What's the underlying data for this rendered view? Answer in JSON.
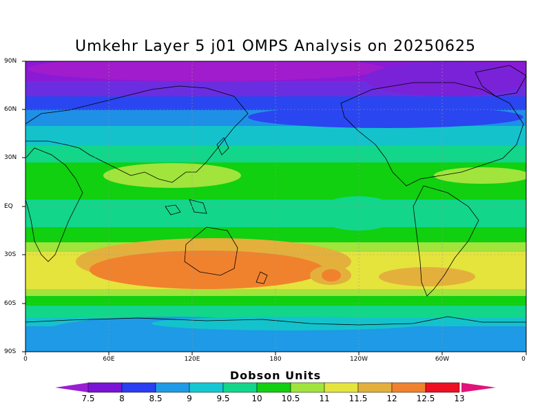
{
  "title": "Umkehr Layer 5 j01 OMPS Analysis on 20250625",
  "map": {
    "lat_labels": [
      "90N",
      "60N",
      "30N",
      "EQ",
      "30S",
      "60S",
      "90S"
    ],
    "lon_labels": [
      "0",
      "60E",
      "120E",
      "180",
      "120W",
      "60W",
      "0"
    ]
  },
  "colorbar": {
    "title": "Dobson Units",
    "labels": [
      "7.5",
      "8",
      "8.5",
      "9",
      "9.5",
      "10",
      "10.5",
      "11",
      "11.5",
      "12",
      "12.5",
      "13"
    ],
    "colors": [
      "#9a1ed2",
      "#7a14d6",
      "#2a3ef2",
      "#1e9ae6",
      "#14c8d2",
      "#12d68a",
      "#10d010",
      "#a0e43c",
      "#e4e43c",
      "#e4b03c",
      "#f0822e",
      "#ee0f22",
      "#e0147a"
    ]
  }
}
